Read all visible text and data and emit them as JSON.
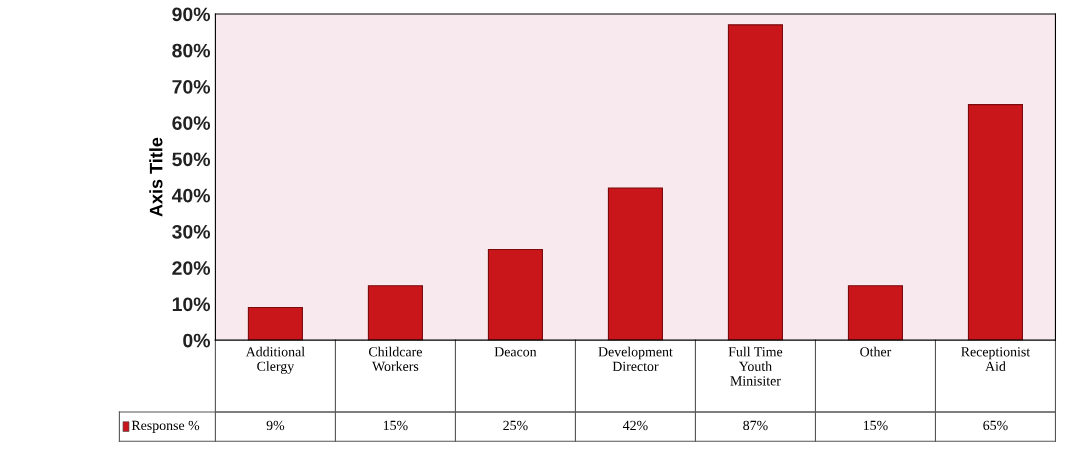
{
  "chart_data": {
    "type": "bar",
    "ylabel": "Axis Title",
    "categories": [
      "Additional\nClergy",
      "Childcare\nWorkers",
      "Deacon",
      "Development\nDirector",
      "Full Time\nYouth\nMinisiter",
      "Other",
      "Receptionist\nAid"
    ],
    "series": [
      {
        "name": "Response %",
        "color": "#c8161b",
        "values": [
          9,
          15,
          25,
          42,
          87,
          15,
          65
        ],
        "value_labels": [
          "9%",
          "15%",
          "25%",
          "42%",
          "87%",
          "15%",
          "65%"
        ]
      }
    ],
    "ylim": [
      0,
      90
    ],
    "yticks": [
      {
        "value": 0,
        "label": "0%"
      },
      {
        "value": 10,
        "label": "10%"
      },
      {
        "value": 20,
        "label": "20%"
      },
      {
        "value": 30,
        "label": "30%"
      },
      {
        "value": 40,
        "label": "40%"
      },
      {
        "value": 50,
        "label": "50%"
      },
      {
        "value": 60,
        "label": "60%"
      },
      {
        "value": 70,
        "label": "70%"
      },
      {
        "value": 80,
        "label": "80%"
      },
      {
        "value": 90,
        "label": "90%"
      }
    ],
    "legend": "bottom"
  }
}
